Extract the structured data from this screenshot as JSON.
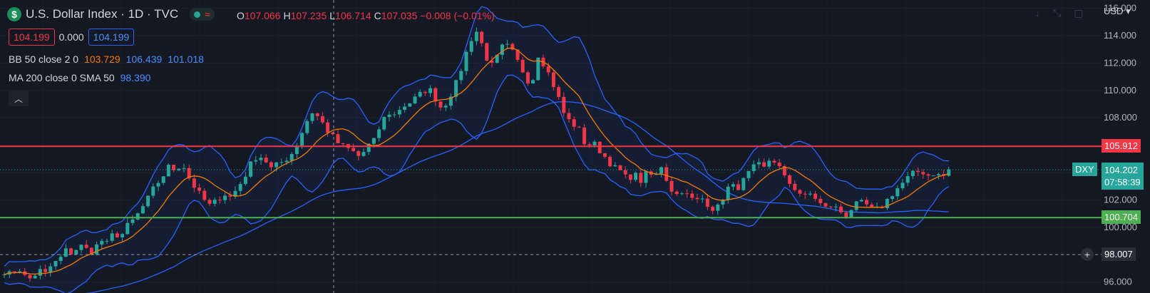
{
  "header": {
    "logo_symbol": "$",
    "title": "U.S. Dollar Index · 1D · TVC",
    "live_icon": "wave-icon",
    "ohlc": {
      "o_label": "O",
      "o": "107.066",
      "h_label": "H",
      "h": "107.235",
      "l_label": "L",
      "l": "106.714",
      "c_label": "C",
      "c": "107.035",
      "change": "−0.008 (−0.01%)"
    },
    "sell_price": "104.199",
    "spread": "0.000",
    "buy_price": "104.199"
  },
  "indicators": {
    "bb": {
      "name": "BB 50 close 2 0",
      "mid": "103.729",
      "upper": "106.439",
      "lower": "101.018"
    },
    "ma": {
      "name": "MA 200 close 0 SMA 50",
      "value": "98.390"
    }
  },
  "currency": "USD",
  "colors": {
    "up": "#26a69a",
    "down": "#f23645",
    "bb_mid": "#f57c00",
    "bb_band": "#2962ff",
    "ma": "#2962ff",
    "resistance": "#f23645",
    "support": "#4caf50"
  },
  "price_badges": {
    "resistance": "105.912",
    "support": "100.704",
    "symbol": "DXY",
    "last": "104.202",
    "countdown": "07:58:39",
    "crosshair": "98.007"
  },
  "chart_data": {
    "type": "candlestick",
    "ylim": [
      95.2,
      116.6
    ],
    "y_ticks": [
      "96.000",
      "98.000",
      "100.000",
      "102.000",
      "104.000",
      "106.000",
      "108.000",
      "110.000",
      "112.000",
      "114.000",
      "116.000"
    ],
    "horizontal_lines": [
      {
        "value": 105.912,
        "color": "#f23645"
      },
      {
        "value": 100.704,
        "color": "#4caf50"
      }
    ],
    "crosshair": {
      "y": 98.007
    },
    "close_path": [
      [
        0,
        96.8
      ],
      [
        8,
        96.5
      ],
      [
        16,
        97.1
      ],
      [
        24,
        96.4
      ],
      [
        32,
        96.2
      ],
      [
        40,
        96.9
      ],
      [
        48,
        96.6
      ],
      [
        56,
        97.3
      ],
      [
        64,
        97.6
      ],
      [
        72,
        98.3
      ],
      [
        80,
        98.1
      ],
      [
        88,
        98.7
      ],
      [
        96,
        98.4
      ],
      [
        104,
        98.2
      ],
      [
        112,
        99.1
      ],
      [
        120,
        98.8
      ],
      [
        128,
        99.6
      ],
      [
        136,
        99.3
      ],
      [
        144,
        100.1
      ],
      [
        152,
        100.6
      ],
      [
        160,
        101.3
      ],
      [
        168,
        102.1
      ],
      [
        176,
        103.0
      ],
      [
        184,
        103.6
      ],
      [
        192,
        104.4
      ],
      [
        200,
        104.2
      ],
      [
        208,
        104.7
      ],
      [
        216,
        103.6
      ],
      [
        224,
        102.8
      ],
      [
        232,
        102.1
      ],
      [
        240,
        101.6
      ],
      [
        248,
        101.9
      ],
      [
        256,
        102.5
      ],
      [
        264,
        102.2
      ],
      [
        272,
        102.8
      ],
      [
        280,
        103.6
      ],
      [
        288,
        104.6
      ],
      [
        296,
        105.3
      ],
      [
        304,
        105.0
      ],
      [
        312,
        104.3
      ],
      [
        320,
        104.6
      ],
      [
        328,
        104.9
      ],
      [
        336,
        105.4
      ],
      [
        344,
        106.3
      ],
      [
        352,
        107.6
      ],
      [
        360,
        108.4
      ],
      [
        368,
        108.0
      ],
      [
        376,
        107.2
      ],
      [
        384,
        106.6
      ],
      [
        392,
        106.0
      ],
      [
        400,
        105.8
      ],
      [
        408,
        105.5
      ],
      [
        416,
        105.1
      ],
      [
        424,
        105.9
      ],
      [
        432,
        106.3
      ],
      [
        440,
        107.5
      ],
      [
        448,
        108.4
      ],
      [
        456,
        108.2
      ],
      [
        464,
        108.8
      ],
      [
        472,
        109.0
      ],
      [
        480,
        109.4
      ],
      [
        488,
        109.8
      ],
      [
        496,
        110.2
      ],
      [
        504,
        109.4
      ],
      [
        512,
        108.6
      ],
      [
        520,
        109.5
      ],
      [
        528,
        110.5
      ],
      [
        536,
        111.9
      ],
      [
        544,
        113.6
      ],
      [
        552,
        114.3
      ],
      [
        560,
        113.1
      ],
      [
        568,
        111.6
      ],
      [
        576,
        112.4
      ],
      [
        584,
        113.4
      ],
      [
        592,
        113.0
      ],
      [
        600,
        112.1
      ],
      [
        608,
        111.2
      ],
      [
        616,
        110.3
      ],
      [
        624,
        112.6
      ],
      [
        632,
        111.8
      ],
      [
        640,
        110.7
      ],
      [
        648,
        109.4
      ],
      [
        656,
        108.0
      ],
      [
        664,
        107.6
      ],
      [
        672,
        107.1
      ],
      [
        680,
        105.9
      ],
      [
        688,
        106.2
      ],
      [
        696,
        105.6
      ],
      [
        704,
        105.0
      ],
      [
        712,
        104.4
      ],
      [
        720,
        104.1
      ],
      [
        728,
        103.5
      ],
      [
        736,
        103.9
      ],
      [
        744,
        103.4
      ],
      [
        752,
        104.0
      ],
      [
        760,
        103.6
      ],
      [
        768,
        104.5
      ],
      [
        776,
        103.2
      ],
      [
        784,
        102.3
      ],
      [
        792,
        102.7
      ],
      [
        800,
        102.2
      ],
      [
        808,
        101.9
      ],
      [
        816,
        102.1
      ],
      [
        824,
        101.6
      ],
      [
        832,
        101.2
      ],
      [
        840,
        102.2
      ],
      [
        848,
        103.1
      ],
      [
        856,
        102.8
      ],
      [
        864,
        103.4
      ],
      [
        872,
        104.1
      ],
      [
        880,
        104.6
      ],
      [
        888,
        104.3
      ],
      [
        896,
        105.1
      ],
      [
        904,
        104.6
      ],
      [
        912,
        103.6
      ],
      [
        920,
        103.1
      ],
      [
        928,
        102.6
      ],
      [
        936,
        102.2
      ],
      [
        944,
        102.5
      ],
      [
        952,
        101.8
      ],
      [
        960,
        101.4
      ],
      [
        968,
        101.6
      ],
      [
        976,
        101.2
      ],
      [
        984,
        100.9
      ],
      [
        992,
        101.5
      ],
      [
        1000,
        101.8
      ],
      [
        1008,
        101.6
      ],
      [
        1016,
        101.2
      ],
      [
        1024,
        101.4
      ],
      [
        1032,
        102.0
      ],
      [
        1040,
        102.6
      ],
      [
        1048,
        103.1
      ],
      [
        1056,
        103.6
      ],
      [
        1064,
        104.0
      ],
      [
        1072,
        104.1
      ],
      [
        1080,
        103.8
      ],
      [
        1088,
        104.0
      ],
      [
        1096,
        103.6
      ],
      [
        1104,
        104.2
      ]
    ]
  }
}
